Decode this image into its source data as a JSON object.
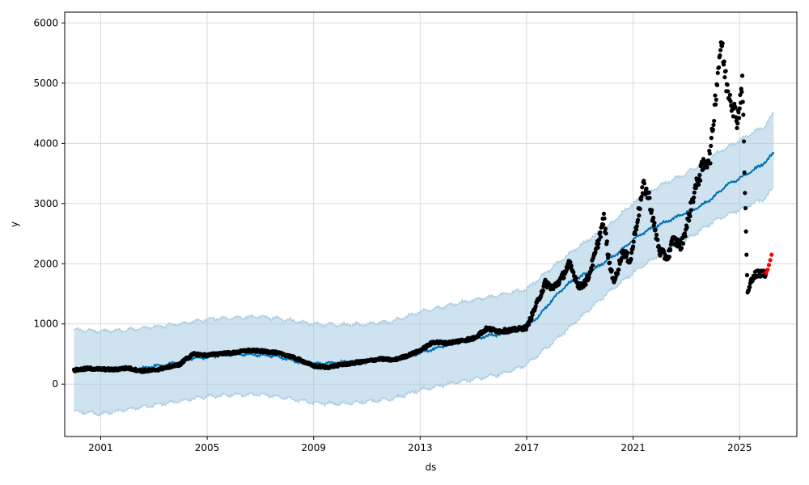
{
  "chart_data": {
    "type": "line",
    "title": "",
    "xlabel": "ds",
    "ylabel": "y",
    "xlim": [
      1999.65,
      2027.15
    ],
    "ylim": [
      -870,
      6180
    ],
    "grid": true,
    "x_ticks": [
      "2001",
      "2005",
      "2009",
      "2013",
      "2017",
      "2021",
      "2025"
    ],
    "y_ticks": [
      "0",
      "1000",
      "2000",
      "3000",
      "4000",
      "5000",
      "6000"
    ],
    "colors": {
      "forecast": "#0072b2",
      "interval_fill": "#a6cbe3",
      "interval_line": "#a6cbe3",
      "observed": "#000000",
      "recent": "#ff0000",
      "grid": "#d9d9d9"
    },
    "series": [
      {
        "name": "",
        "kind": "forecast_yhat",
        "x": [
          2000.0,
          2000.5,
          2001.0,
          2001.5,
          2002.0,
          2002.5,
          2003.0,
          2003.5,
          2004.0,
          2004.5,
          2005.0,
          2005.5,
          2006.0,
          2006.5,
          2007.0,
          2007.5,
          2008.0,
          2008.5,
          2009.0,
          2009.5,
          2010.0,
          2010.5,
          2011.0,
          2011.5,
          2012.0,
          2012.5,
          2013.0,
          2013.5,
          2014.0,
          2014.5,
          2015.0,
          2015.5,
          2016.0,
          2016.5,
          2017.0,
          2017.5,
          2018.0,
          2018.5,
          2019.0,
          2019.5,
          2020.0,
          2020.5,
          2021.0,
          2021.5,
          2022.0,
          2022.5,
          2023.0,
          2023.5,
          2024.0,
          2024.5,
          2025.0,
          2025.5,
          2026.0,
          2026.3
        ],
        "y": [
          220,
          240,
          250,
          270,
          240,
          260,
          300,
          320,
          380,
          430,
          450,
          480,
          490,
          500,
          480,
          470,
          420,
          360,
          330,
          350,
          360,
          380,
          400,
          410,
          420,
          450,
          520,
          580,
          650,
          700,
          740,
          800,
          830,
          880,
          950,
          1150,
          1420,
          1650,
          1780,
          1900,
          2050,
          2200,
          2400,
          2550,
          2650,
          2750,
          2850,
          2950,
          3100,
          3300,
          3420,
          3550,
          3700,
          3860
        ]
      },
      {
        "name": "",
        "kind": "interval_upper",
        "x": [
          2000.0,
          2001.0,
          2002.0,
          2003.0,
          2004.0,
          2005.0,
          2006.0,
          2007.0,
          2008.0,
          2009.0,
          2010.0,
          2011.0,
          2012.0,
          2013.0,
          2014.0,
          2015.0,
          2016.0,
          2017.0,
          2018.0,
          2019.0,
          2020.0,
          2021.0,
          2022.0,
          2023.0,
          2024.0,
          2025.0,
          2026.0,
          2026.3
        ],
        "y": [
          900,
          880,
          900,
          950,
          1000,
          1080,
          1100,
          1120,
          1070,
          1000,
          980,
          1000,
          1050,
          1200,
          1300,
          1400,
          1480,
          1580,
          1950,
          2300,
          2600,
          3000,
          3300,
          3500,
          3800,
          4050,
          4300,
          4550
        ]
      },
      {
        "name": "",
        "kind": "interval_lower",
        "x": [
          2000.0,
          2001.0,
          2002.0,
          2003.0,
          2004.0,
          2005.0,
          2006.0,
          2007.0,
          2008.0,
          2009.0,
          2010.0,
          2011.0,
          2012.0,
          2013.0,
          2014.0,
          2015.0,
          2016.0,
          2017.0,
          2018.0,
          2019.0,
          2020.0,
          2021.0,
          2022.0,
          2023.0,
          2024.0,
          2025.0,
          2026.0,
          2026.3
        ],
        "y": [
          -450,
          -500,
          -420,
          -350,
          -280,
          -200,
          -180,
          -170,
          -230,
          -310,
          -330,
          -290,
          -240,
          -100,
          0,
          80,
          160,
          320,
          700,
          1100,
          1500,
          1850,
          2150,
          2400,
          2700,
          2900,
          3100,
          3300
        ]
      },
      {
        "name": "",
        "kind": "observed",
        "x": [
          2000.0,
          2000.5,
          2001.0,
          2001.5,
          2002.0,
          2002.5,
          2003.0,
          2003.5,
          2004.0,
          2004.2,
          2004.5,
          2005.0,
          2005.5,
          2006.0,
          2006.5,
          2007.0,
          2007.5,
          2008.0,
          2008.5,
          2009.0,
          2009.5,
          2010.0,
          2010.5,
          2011.0,
          2011.5,
          2012.0,
          2012.5,
          2013.0,
          2013.5,
          2014.0,
          2014.5,
          2015.0,
          2015.5,
          2016.0,
          2016.5,
          2017.0,
          2017.3,
          2017.7,
          2018.0,
          2018.3,
          2018.6,
          2019.0,
          2019.3,
          2019.6,
          2019.9,
          2020.1,
          2020.3,
          2020.6,
          2020.9,
          2021.1,
          2021.4,
          2021.6,
          2021.8,
          2022.0,
          2022.3,
          2022.5,
          2022.8,
          2023.0,
          2023.3,
          2023.6,
          2023.9,
          2024.1,
          2024.3,
          2024.5,
          2024.7,
          2024.9,
          2025.0,
          2025.1,
          2025.2,
          2025.3,
          2025.5,
          2025.8,
          2026.0
        ],
        "y": [
          230,
          260,
          250,
          240,
          270,
          220,
          230,
          280,
          330,
          420,
          500,
          480,
          510,
          520,
          560,
          550,
          530,
          480,
          400,
          300,
          280,
          320,
          350,
          380,
          420,
          400,
          470,
          560,
          700,
          680,
          720,
          760,
          920,
          880,
          900,
          940,
          1250,
          1680,
          1600,
          1750,
          2000,
          1600,
          1750,
          2200,
          2750,
          2000,
          1700,
          2200,
          2050,
          2600,
          3300,
          3100,
          2600,
          2200,
          2100,
          2400,
          2300,
          2600,
          3200,
          3600,
          3800,
          4800,
          5700,
          5000,
          4700,
          4400,
          4600,
          5100,
          3200,
          1500,
          1800,
          1850,
          1820
        ]
      },
      {
        "name": "",
        "kind": "recent",
        "x": [
          2026.0,
          2026.05,
          2026.1,
          2026.15,
          2026.2
        ],
        "y": [
          1850,
          1900,
          1980,
          2060,
          2150
        ]
      }
    ]
  }
}
